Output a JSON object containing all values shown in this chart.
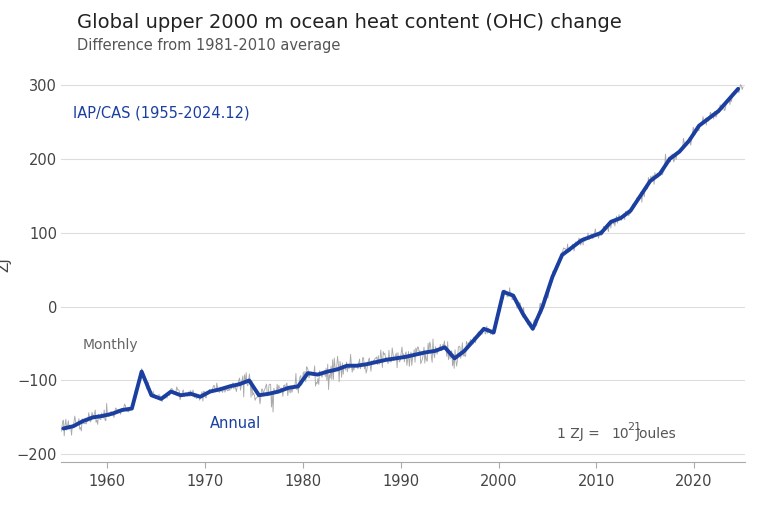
{
  "title": "Global upper 2000 m ocean heat content (OHC) change",
  "subtitle": "Difference from 1981-2010 average",
  "ylabel": "ZJ",
  "ylim": [
    -210,
    325
  ],
  "xlim": [
    1955.3,
    2025.2
  ],
  "yticks": [
    -200,
    -100,
    0,
    100,
    200,
    300
  ],
  "xticks": [
    1960,
    1970,
    1980,
    1990,
    2000,
    2010,
    2020
  ],
  "annual_color": "#1a3fa0",
  "monthly_color": "#aaaaaa",
  "background_color": "#ffffff",
  "grid_color": "#dddddd",
  "label_iap": "IAP/CAS (1955-2024.12)",
  "label_monthly": "Monthly",
  "label_annual": "Annual",
  "title_fontsize": 14,
  "subtitle_fontsize": 10.5,
  "axis_label_fontsize": 11,
  "annual_values": [
    -165,
    -162,
    -155,
    -150,
    -148,
    -145,
    -140,
    -138,
    -88,
    -120,
    -125,
    -115,
    -120,
    -118,
    -122,
    -115,
    -112,
    -108,
    -105,
    -100,
    -120,
    -118,
    -115,
    -110,
    -108,
    -90,
    -92,
    -88,
    -85,
    -80,
    -80,
    -78,
    -75,
    -72,
    -70,
    -68,
    -65,
    -62,
    -60,
    -55,
    -70,
    -60,
    -45,
    -30,
    -35,
    20,
    15,
    -10,
    -30,
    0,
    40,
    70,
    80,
    90,
    95,
    100,
    115,
    120,
    130,
    150,
    170,
    180,
    200,
    210,
    225,
    245,
    255,
    265,
    280,
    295
  ]
}
